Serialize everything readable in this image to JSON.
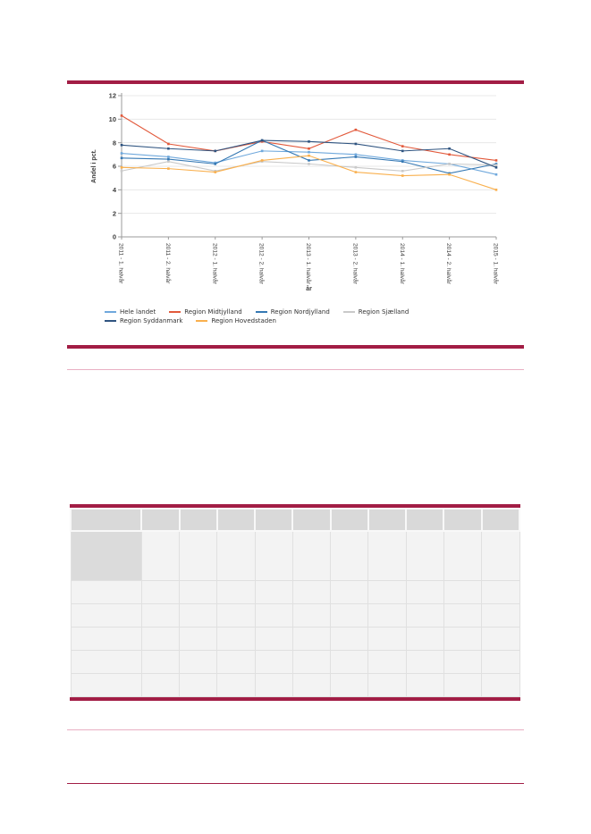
{
  "colors": {
    "accent_bar": "#A21D45",
    "accent_light_rule": "#E9AFC3",
    "grid_line": "#E8E8E8",
    "axis_line": "#9B9B9B",
    "axis_text": "#3D3D3D",
    "table_header_bg": "#D9D9D9",
    "table_cell_bg": "#F3F3F3"
  },
  "chart_data": {
    "type": "line",
    "title": "",
    "xlabel": "år",
    "ylabel": "Andel i pct.",
    "ylim": [
      0,
      12
    ],
    "yticks": [
      0,
      2,
      4,
      6,
      8,
      10,
      12
    ],
    "grid": true,
    "legend_position": "bottom",
    "categories": [
      "2011 - 1. halvår",
      "2011 - 2. halvår",
      "2012 - 1. halvår",
      "2012 - 2. halvår",
      "2013 - 1. halvår",
      "2013 - 2. halvår",
      "2014 - 1. halvår",
      "2014 - 2. halvår",
      "2015 - 1. halvår"
    ],
    "series": [
      {
        "name": "Hele landet",
        "color": "#6FA8DC",
        "values": [
          7.1,
          6.8,
          6.3,
          7.3,
          7.2,
          7.0,
          6.5,
          6.2,
          5.3
        ]
      },
      {
        "name": "Region Midtjylland",
        "color": "#E2593B",
        "values": [
          10.3,
          7.9,
          7.3,
          8.1,
          7.5,
          9.1,
          7.7,
          7.0,
          6.5
        ]
      },
      {
        "name": "Region Nordjylland",
        "color": "#3578B3",
        "values": [
          6.7,
          6.6,
          6.2,
          8.2,
          6.5,
          6.8,
          6.4,
          5.4,
          6.2
        ]
      },
      {
        "name": "Region Sjælland",
        "color": "#C9C9C9",
        "values": [
          5.6,
          6.4,
          5.6,
          6.4,
          6.2,
          5.9,
          5.6,
          6.2,
          6.1
        ]
      },
      {
        "name": "Region Syddanmark",
        "color": "#2F5480",
        "values": [
          7.8,
          7.5,
          7.3,
          8.2,
          8.1,
          7.9,
          7.3,
          7.5,
          5.9
        ]
      },
      {
        "name": "Region Hovedstaden",
        "color": "#F9B04E",
        "values": [
          5.9,
          5.8,
          5.5,
          6.5,
          6.9,
          5.5,
          5.2,
          5.3,
          4.0
        ]
      }
    ]
  },
  "table": {
    "column_count": 11,
    "header": [
      "",
      "",
      "",
      "",
      "",
      "",
      "",
      "",
      "",
      "",
      ""
    ],
    "rows": [
      [
        "",
        "",
        "",
        "",
        "",
        "",
        "",
        "",
        "",
        "",
        ""
      ],
      [
        "",
        "",
        "",
        "",
        "",
        "",
        "",
        "",
        "",
        "",
        ""
      ],
      [
        "",
        "",
        "",
        "",
        "",
        "",
        "",
        "",
        "",
        "",
        ""
      ],
      [
        "",
        "",
        "",
        "",
        "",
        "",
        "",
        "",
        "",
        "",
        ""
      ],
      [
        "",
        "",
        "",
        "",
        "",
        "",
        "",
        "",
        "",
        "",
        ""
      ],
      [
        "",
        "",
        "",
        "",
        "",
        "",
        "",
        "",
        "",
        "",
        ""
      ]
    ]
  }
}
